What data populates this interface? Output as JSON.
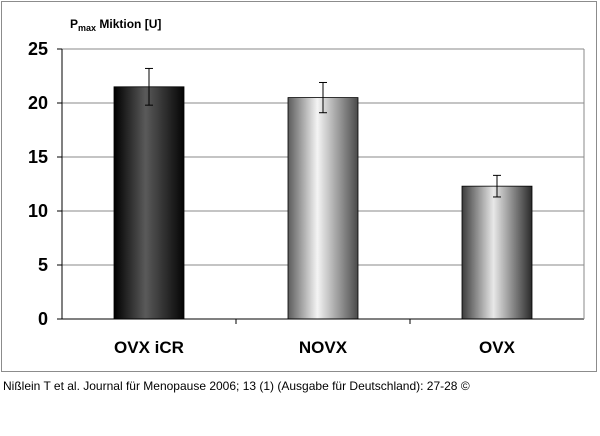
{
  "chart_data": {
    "type": "bar",
    "title_main": "P",
    "title_subscript": "max",
    "title_rest": " Miktion [U]",
    "categories": [
      "OVX iCR",
      "NOVX",
      "OVX"
    ],
    "values": [
      21.5,
      20.5,
      12.3
    ],
    "errors": [
      1.7,
      1.4,
      1.0
    ],
    "bar_styles": [
      "dark",
      "light",
      "medium"
    ],
    "ylim": [
      0,
      25
    ],
    "yticks": [
      0,
      5,
      10,
      15,
      20,
      25
    ],
    "grid": true,
    "xlabel": "",
    "ylabel": ""
  },
  "caption": "Nißlein T et al. Journal für Menopause 2006; 13 (1) (Ausgabe für Deutschland): 27-28 ©"
}
